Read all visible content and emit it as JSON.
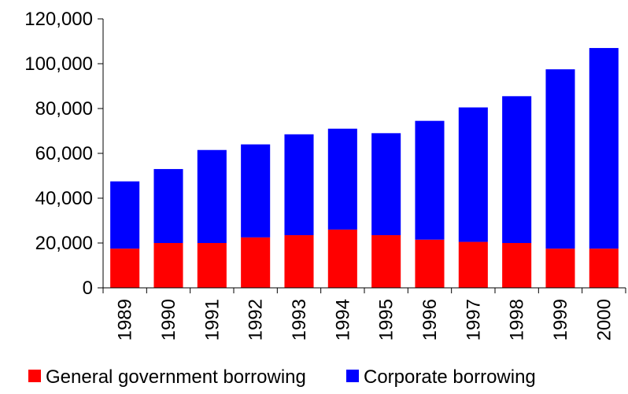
{
  "chart_data": {
    "type": "bar",
    "stacked": true,
    "categories": [
      "1989",
      "1990",
      "1991",
      "1992",
      "1993",
      "1994",
      "1995",
      "1996",
      "1997",
      "1998",
      "1999",
      "2000"
    ],
    "series": [
      {
        "name": "General government borrowing",
        "color": "#ff0000",
        "values": [
          17500,
          20000,
          20000,
          22500,
          23500,
          26000,
          23500,
          21500,
          20500,
          20000,
          17500,
          17500
        ]
      },
      {
        "name": "Corporate borrowing",
        "color": "#0000ff",
        "values": [
          30000,
          33000,
          41500,
          41500,
          45000,
          45000,
          45500,
          53000,
          60000,
          65500,
          80000,
          89500
        ]
      }
    ],
    "ylim": [
      0,
      120000
    ],
    "y_ticks": [
      0,
      20000,
      40000,
      60000,
      80000,
      100000,
      120000
    ],
    "y_tick_labels": [
      "0",
      "20,000",
      "40,000",
      "60,000",
      "80,000",
      "100,000",
      "120,000"
    ],
    "grid": false,
    "legend_position": "bottom",
    "title": "",
    "xlabel": "",
    "ylabel": ""
  }
}
